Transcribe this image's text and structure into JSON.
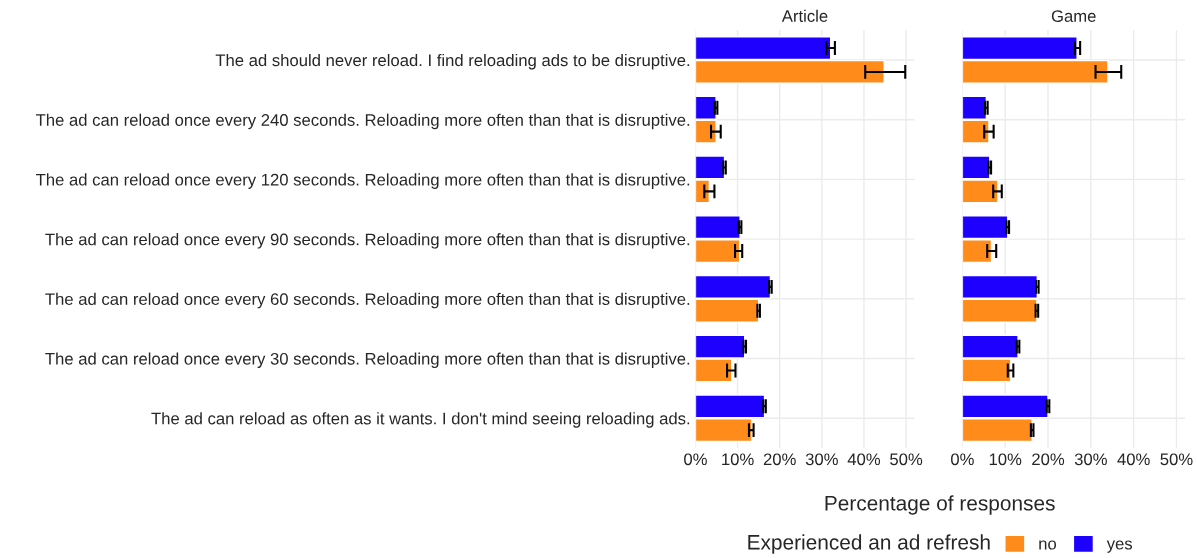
{
  "chart_data": [
    {
      "type": "bar",
      "orientation": "horizontal",
      "title": "Article",
      "xlabel": "Percentage of responses",
      "legend_title": "Experienced an ad refresh",
      "legend": "bottom",
      "grid": true,
      "categories": [
        "The ad should never reload. I find reloading ads to be disruptive.",
        "The ad can reload once every 240 seconds. Reloading more often than that is disruptive.",
        "The ad can reload once every 120 seconds. Reloading more often than that is disruptive.",
        "The ad can reload once every 90 seconds. Reloading more often than that is disruptive.",
        "The ad can reload once every 60 seconds. Reloading more often than that is disruptive.",
        "The ad can reload once every 30 seconds. Reloading more often than that is disruptive.",
        "The ad can reload as often as it wants. I don't mind seeing reloading ads."
      ],
      "series": [
        {
          "name": "no",
          "color": "#ff8c1a",
          "values": [
            44.8,
            4.9,
            3.3,
            10.5,
            15.0,
            8.6,
            13.4
          ],
          "errors": [
            [
              40.3,
              49.8
            ],
            [
              3.7,
              6.0
            ],
            [
              2.1,
              4.5
            ],
            [
              9.4,
              11.1
            ],
            [
              14.7,
              15.3
            ],
            [
              7.5,
              9.5
            ],
            [
              12.7,
              13.8
            ]
          ]
        },
        {
          "name": "yes",
          "color": "#1e00ff",
          "values": [
            32.1,
            4.9,
            6.9,
            10.6,
            17.8,
            11.7,
            16.4
          ],
          "errors": [
            [
              31.1,
              33.1
            ],
            [
              4.6,
              5.2
            ],
            [
              6.6,
              7.2
            ],
            [
              10.3,
              10.9
            ],
            [
              17.5,
              18.1
            ],
            [
              11.4,
              12.0
            ],
            [
              16.1,
              16.7
            ]
          ]
        }
      ],
      "xlim": [
        0,
        52
      ],
      "xticks": [
        {
          "value": 0,
          "label": "0%"
        },
        {
          "value": 10,
          "label": "10%"
        },
        {
          "value": 20,
          "label": "20%"
        },
        {
          "value": 30,
          "label": "30%"
        },
        {
          "value": 40,
          "label": "40%"
        },
        {
          "value": 50,
          "label": "50%"
        }
      ]
    },
    {
      "type": "bar",
      "orientation": "horizontal",
      "title": "Game",
      "grid": true,
      "tick_labels": "x",
      "categories": [
        null,
        null,
        null,
        null,
        null,
        null,
        null
      ],
      "series": [
        {
          "color": "#ff8c1a",
          "values": [
            34.0,
            6.2,
            8.3,
            6.8,
            17.4,
            11.3,
            16.3
          ],
          "errors": [
            [
              31.1,
              37.1
            ],
            [
              5.1,
              7.3
            ],
            [
              7.2,
              9.2
            ],
            [
              5.8,
              7.9
            ],
            [
              17.1,
              17.7
            ],
            [
              10.6,
              11.9
            ],
            [
              16.0,
              16.6
            ]
          ]
        },
        {
          "color": "#1e00ff",
          "values": [
            26.8,
            5.6,
            6.4,
            10.6,
            17.5,
            13.0,
            20.0
          ],
          "errors": [
            [
              26.3,
              27.5
            ],
            [
              5.3,
              5.9
            ],
            [
              6.1,
              6.7
            ],
            [
              10.3,
              10.9
            ],
            [
              17.2,
              17.8
            ],
            [
              12.7,
              13.3
            ],
            [
              19.7,
              20.3
            ]
          ]
        }
      ],
      "xlim": [
        0,
        52
      ],
      "xticks": [
        {
          "value": 0,
          "label": "0%"
        },
        {
          "value": 10,
          "label": "10%"
        },
        {
          "value": 20,
          "label": "20%"
        },
        {
          "value": 30,
          "label": "30%"
        },
        {
          "value": 40,
          "label": "40%"
        },
        {
          "value": 50,
          "label": "50%"
        }
      ]
    }
  ]
}
